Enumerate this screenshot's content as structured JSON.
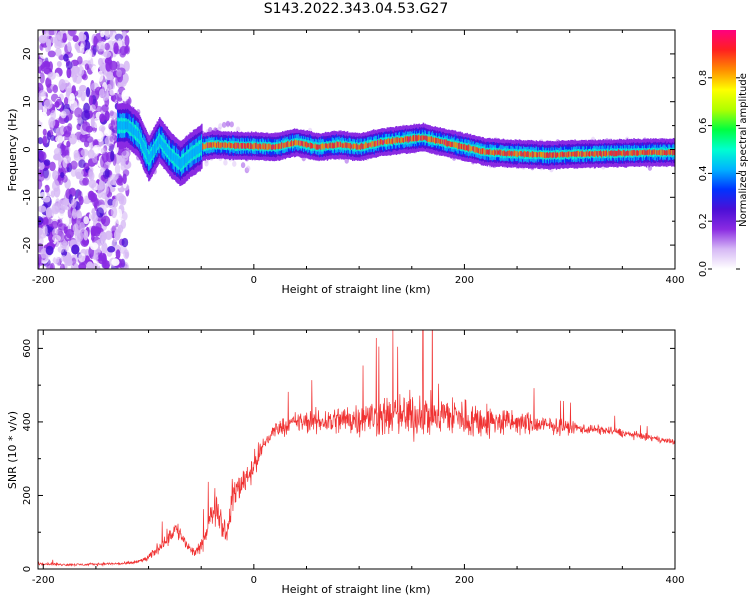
{
  "title": "S143.2022.343.04.53.G27",
  "chart_data": [
    {
      "type": "heatmap",
      "title": "S143.2022.343.04.53.G27",
      "xlabel": "Height of straight line (km)",
      "ylabel": "Frequency (Hz)",
      "xlim": [
        -205,
        400
      ],
      "ylim": [
        -25,
        25
      ],
      "x_ticks": [
        -200,
        0,
        200,
        400
      ],
      "y_ticks": [
        -20,
        -10,
        0,
        10,
        20
      ],
      "grid": false,
      "colorbar": {
        "label": "Normalized spectral amplitude",
        "range": [
          0,
          1
        ],
        "ticks": [
          "0.0",
          "0.2",
          "0.4",
          "0.6",
          "0.8"
        ],
        "colors": [
          "#ffffff",
          "#d6b8f5",
          "#8a2be2",
          "#4b0fd6",
          "#0033ff",
          "#00b3ff",
          "#00ffd0",
          "#00ff40",
          "#b0ff00",
          "#ffff00",
          "#ff8c00",
          "#ff2020",
          "#ff007f"
        ]
      },
      "ridge_x": [
        -130,
        -120,
        -110,
        -100,
        -90,
        -80,
        -70,
        -65,
        -60,
        -50,
        -40,
        -20,
        0,
        20,
        40,
        60,
        80,
        100,
        120,
        140,
        160,
        180,
        200,
        220,
        240,
        260,
        280,
        300,
        320,
        340,
        360,
        380,
        400
      ],
      "ridge_y": [
        5,
        5,
        3,
        -2,
        2,
        -1,
        -3,
        -2,
        -1,
        0.5,
        1,
        0.8,
        0.7,
        0.5,
        1.5,
        0.5,
        1,
        0.5,
        1.5,
        2,
        2.5,
        1.5,
        0.5,
        -0.5,
        -0.8,
        -1,
        -1.2,
        -1,
        -0.9,
        -0.8,
        -0.7,
        -0.6,
        -0.6
      ]
    },
    {
      "type": "line",
      "xlabel": "Height of straight line (km)",
      "ylabel": "SNR (10 * v/v)",
      "xlim": [
        -205,
        400
      ],
      "ylim": [
        0,
        650
      ],
      "x_ticks": [
        -200,
        0,
        200,
        400
      ],
      "y_ticks": [
        0,
        200,
        400,
        600
      ],
      "grid": false,
      "line_color": "#f03232",
      "series": [
        {
          "x": [
            -205,
            -180,
            -160,
            -140,
            -120,
            -110,
            -100,
            -90,
            -80,
            -75,
            -70,
            -65,
            -60,
            -55,
            -50,
            -45,
            -40,
            -35,
            -30,
            -25,
            -20,
            -10,
            0,
            10,
            20,
            30,
            40,
            60,
            80,
            100,
            120,
            140,
            160,
            180,
            200,
            220,
            240,
            260,
            280,
            300,
            320,
            340,
            360,
            380,
            400
          ],
          "y": [
            15,
            12,
            12,
            14,
            15,
            20,
            30,
            60,
            90,
            110,
            95,
            70,
            50,
            45,
            60,
            100,
            150,
            180,
            120,
            100,
            200,
            240,
            280,
            340,
            380,
            390,
            400,
            400,
            405,
            410,
            415,
            415,
            420,
            420,
            410,
            400,
            400,
            395,
            390,
            385,
            380,
            375,
            365,
            355,
            345
          ],
          "noise_amp": [
            6,
            5,
            5,
            5,
            6,
            8,
            12,
            25,
            35,
            40,
            35,
            25,
            20,
            20,
            25,
            40,
            60,
            70,
            60,
            50,
            70,
            60,
            55,
            40,
            30,
            35,
            40,
            50,
            60,
            70,
            80,
            90,
            95,
            90,
            80,
            70,
            55,
            45,
            35,
            25,
            20,
            18,
            15,
            12,
            10
          ]
        }
      ]
    }
  ]
}
